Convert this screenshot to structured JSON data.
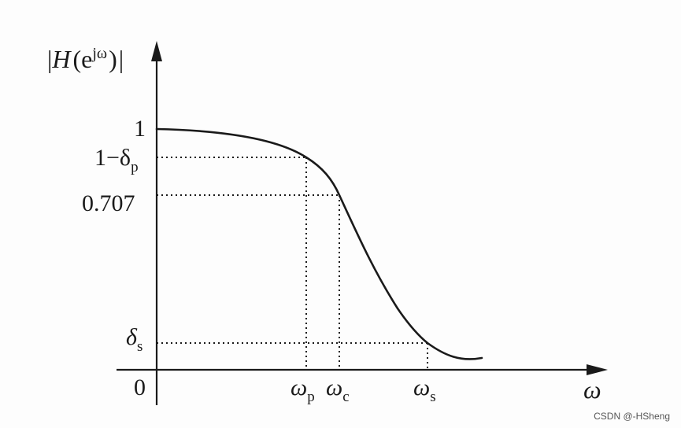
{
  "diagram": {
    "y_axis_label": {
      "bar_left": "|",
      "H": "H",
      "paren_open": "(e",
      "superscript": "jω",
      "paren_close": ")",
      "bar_right": "|"
    },
    "y_ticks": {
      "one": "1",
      "one_minus_delta_p": {
        "main": "1−δ",
        "sub": "p"
      },
      "half_power": "0.707",
      "delta_s": {
        "main": "δ",
        "sub": "s"
      }
    },
    "x_ticks": {
      "origin": "0",
      "omega_p": {
        "main": "ω",
        "sub": "p"
      },
      "omega_c": {
        "main": "ω",
        "sub": "c"
      },
      "omega_s": {
        "main": "ω",
        "sub": "s"
      }
    },
    "x_axis_label": "ω"
  },
  "watermark": "CSDN @-HSheng",
  "colors": {
    "ink": "#1a1a1a",
    "background": "#fdfdfd"
  }
}
